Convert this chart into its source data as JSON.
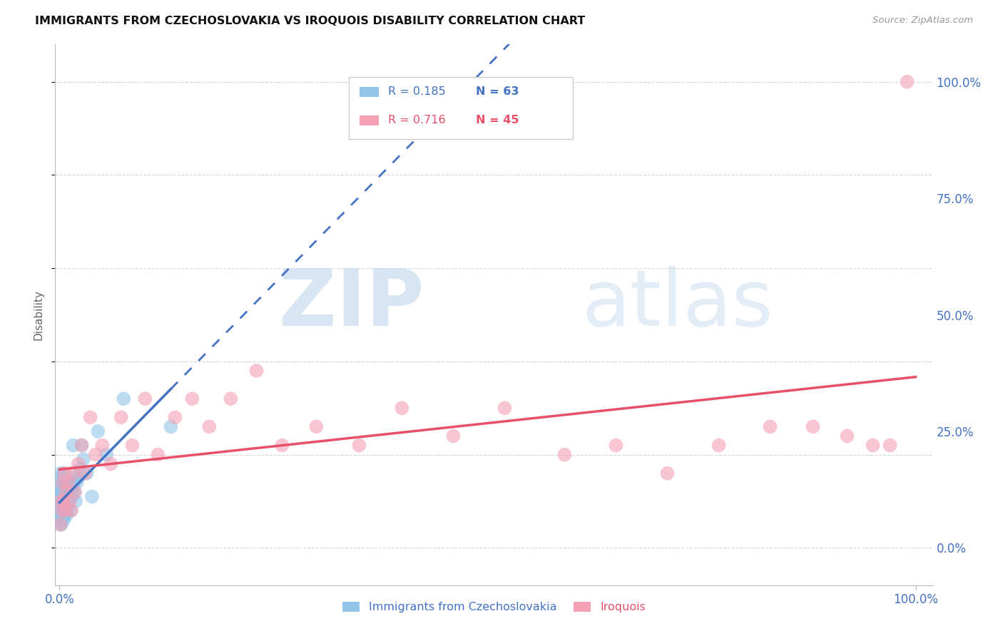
{
  "title": "IMMIGRANTS FROM CZECHOSLOVAKIA VS IROQUOIS DISABILITY CORRELATION CHART",
  "source": "Source: ZipAtlas.com",
  "ylabel": "Disability",
  "yticks": [
    "0.0%",
    "25.0%",
    "50.0%",
    "75.0%",
    "100.0%"
  ],
  "ytick_vals": [
    0.0,
    0.25,
    0.5,
    0.75,
    1.0
  ],
  "xtick_vals": [
    0.0,
    0.25,
    0.5,
    0.75,
    1.0
  ],
  "xtick_labels": [
    "0.0%",
    "",
    "",
    "",
    "100.0%"
  ],
  "legend_label_blue": "Immigrants from Czechoslovakia",
  "legend_label_pink": "Iroquois",
  "color_blue": "#92C5E8",
  "color_pink": "#F4A0B5",
  "color_blue_line": "#4472C4",
  "color_pink_line": "#E8506A",
  "blue_r": 0.185,
  "blue_n": 63,
  "pink_r": 0.716,
  "pink_n": 45,
  "blue_points_x": [
    0.0005,
    0.0008,
    0.001,
    0.001,
    0.001,
    0.001,
    0.001,
    0.0012,
    0.0015,
    0.0018,
    0.002,
    0.002,
    0.002,
    0.002,
    0.002,
    0.0025,
    0.003,
    0.003,
    0.003,
    0.003,
    0.0035,
    0.004,
    0.004,
    0.004,
    0.005,
    0.005,
    0.005,
    0.005,
    0.006,
    0.006,
    0.006,
    0.007,
    0.007,
    0.008,
    0.008,
    0.008,
    0.009,
    0.009,
    0.01,
    0.01,
    0.011,
    0.011,
    0.012,
    0.013,
    0.013,
    0.014,
    0.015,
    0.016,
    0.016,
    0.017,
    0.018,
    0.019,
    0.02,
    0.022,
    0.024,
    0.026,
    0.028,
    0.032,
    0.038,
    0.045,
    0.055,
    0.075,
    0.13
  ],
  "blue_points_y": [
    0.08,
    0.1,
    0.05,
    0.07,
    0.1,
    0.13,
    0.16,
    0.08,
    0.1,
    0.12,
    0.05,
    0.07,
    0.09,
    0.12,
    0.15,
    0.1,
    0.06,
    0.08,
    0.11,
    0.14,
    0.09,
    0.07,
    0.1,
    0.13,
    0.06,
    0.09,
    0.12,
    0.16,
    0.07,
    0.1,
    0.13,
    0.08,
    0.12,
    0.07,
    0.09,
    0.13,
    0.08,
    0.12,
    0.09,
    0.14,
    0.1,
    0.13,
    0.11,
    0.08,
    0.12,
    0.14,
    0.11,
    0.22,
    0.13,
    0.15,
    0.12,
    0.1,
    0.14,
    0.15,
    0.17,
    0.22,
    0.19,
    0.16,
    0.11,
    0.25,
    0.2,
    0.32,
    0.26
  ],
  "pink_points_x": [
    0.001,
    0.002,
    0.003,
    0.004,
    0.005,
    0.006,
    0.007,
    0.008,
    0.01,
    0.012,
    0.014,
    0.016,
    0.018,
    0.022,
    0.026,
    0.03,
    0.036,
    0.042,
    0.05,
    0.06,
    0.072,
    0.085,
    0.1,
    0.115,
    0.135,
    0.155,
    0.175,
    0.2,
    0.23,
    0.26,
    0.3,
    0.35,
    0.4,
    0.46,
    0.52,
    0.59,
    0.65,
    0.71,
    0.77,
    0.83,
    0.88,
    0.92,
    0.95,
    0.97,
    0.99
  ],
  "pink_points_y": [
    0.05,
    0.1,
    0.08,
    0.14,
    0.1,
    0.16,
    0.08,
    0.12,
    0.14,
    0.1,
    0.08,
    0.16,
    0.12,
    0.18,
    0.22,
    0.16,
    0.28,
    0.2,
    0.22,
    0.18,
    0.28,
    0.22,
    0.32,
    0.2,
    0.28,
    0.32,
    0.26,
    0.32,
    0.38,
    0.22,
    0.26,
    0.22,
    0.3,
    0.24,
    0.3,
    0.2,
    0.22,
    0.16,
    0.22,
    0.26,
    0.26,
    0.24,
    0.22,
    0.22,
    1.0
  ]
}
